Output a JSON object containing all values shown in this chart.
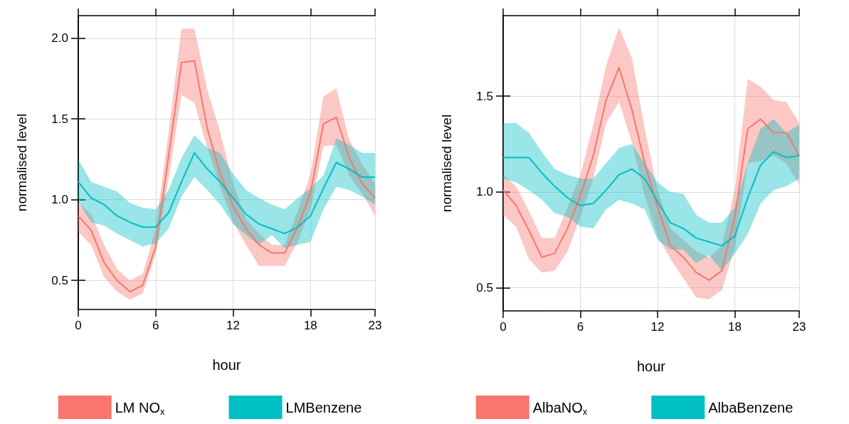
{
  "chart_data": [
    {
      "type": "line",
      "xlabel": "hour",
      "ylabel": "normalised level",
      "x": [
        0,
        1,
        2,
        3,
        4,
        5,
        6,
        7,
        8,
        9,
        10,
        11,
        12,
        13,
        14,
        15,
        16,
        17,
        18,
        19,
        20,
        21,
        22,
        23
      ],
      "xlim": [
        0,
        23
      ],
      "xticks": [
        0,
        6,
        12,
        18,
        23
      ],
      "ylim": [
        0.32,
        2.14
      ],
      "yticks": [
        {
          "value": 0.5,
          "label": "0.5"
        },
        {
          "value": 1.0,
          "label": "1.0"
        },
        {
          "value": 1.5,
          "label": "1.5"
        },
        {
          "value": 2.0,
          "label": "2.0"
        }
      ],
      "grid": true,
      "legend": "bottom",
      "marker": "none",
      "line_style": "solid",
      "series": [
        {
          "name": "LM NO$_{x}$",
          "color": "#f8766d",
          "values": [
            0.9,
            0.81,
            0.61,
            0.5,
            0.43,
            0.47,
            0.71,
            1.27,
            1.85,
            1.86,
            1.44,
            1.16,
            0.96,
            0.82,
            0.72,
            0.67,
            0.67,
            0.83,
            1.04,
            1.47,
            1.51,
            1.26,
            1.1,
            1.01
          ],
          "lower": [
            0.8,
            0.72,
            0.52,
            0.43,
            0.38,
            0.42,
            0.66,
            1.13,
            1.65,
            1.6,
            1.32,
            1.08,
            0.86,
            0.72,
            0.59,
            0.59,
            0.59,
            0.74,
            0.94,
            1.33,
            1.34,
            1.15,
            1.04,
            0.9
          ],
          "upper": [
            0.98,
            0.91,
            0.72,
            0.57,
            0.5,
            0.54,
            0.82,
            1.42,
            2.06,
            2.06,
            1.68,
            1.42,
            1.1,
            0.88,
            0.79,
            0.72,
            0.72,
            0.93,
            1.16,
            1.64,
            1.69,
            1.37,
            1.22,
            1.1
          ]
        },
        {
          "name": "LMBenzene",
          "color": "#00bfc4",
          "values": [
            1.11,
            1.01,
            0.97,
            0.9,
            0.86,
            0.83,
            0.83,
            0.92,
            1.11,
            1.29,
            1.19,
            1.11,
            1.01,
            0.91,
            0.85,
            0.82,
            0.79,
            0.83,
            0.9,
            1.07,
            1.23,
            1.19,
            1.14,
            1.14
          ],
          "lower": [
            0.99,
            0.86,
            0.84,
            0.79,
            0.75,
            0.71,
            0.73,
            0.82,
            1.02,
            1.14,
            1.06,
            0.97,
            0.85,
            0.78,
            0.72,
            0.78,
            0.7,
            0.72,
            0.74,
            0.94,
            1.08,
            1.06,
            1.02,
            0.97
          ],
          "upper": [
            1.25,
            1.11,
            1.08,
            1.05,
            0.98,
            0.95,
            0.94,
            1.06,
            1.26,
            1.4,
            1.32,
            1.29,
            1.16,
            1.06,
            1.01,
            0.97,
            0.94,
            1.01,
            1.07,
            1.15,
            1.38,
            1.34,
            1.29,
            1.29
          ]
        }
      ]
    },
    {
      "type": "line",
      "xlabel": "hour",
      "ylabel": "normalised level",
      "x": [
        0,
        1,
        2,
        3,
        4,
        5,
        6,
        7,
        8,
        9,
        10,
        11,
        12,
        13,
        14,
        15,
        16,
        17,
        18,
        19,
        20,
        21,
        22,
        23
      ],
      "xlim": [
        0,
        23
      ],
      "xticks": [
        0,
        6,
        12,
        18,
        23
      ],
      "ylim": [
        0.38,
        1.92
      ],
      "yticks": [
        {
          "value": 0.5,
          "label": "0.5"
        },
        {
          "value": 1.0,
          "label": "1.0"
        },
        {
          "value": 1.5,
          "label": "1.5"
        }
      ],
      "grid": true,
      "legend": "bottom",
      "marker": "none",
      "line_style": "solid",
      "series": [
        {
          "name": "AlbaNO$_{x}$",
          "color": "#f8766d",
          "values": [
            1.01,
            0.93,
            0.8,
            0.66,
            0.68,
            0.81,
            0.98,
            1.19,
            1.48,
            1.65,
            1.43,
            1.15,
            0.92,
            0.72,
            0.66,
            0.58,
            0.54,
            0.59,
            0.87,
            1.33,
            1.38,
            1.31,
            1.31,
            1.19
          ],
          "lower": [
            0.88,
            0.82,
            0.65,
            0.58,
            0.59,
            0.69,
            0.87,
            1.07,
            1.36,
            1.47,
            1.26,
            0.98,
            0.77,
            0.65,
            0.55,
            0.45,
            0.44,
            0.49,
            0.71,
            1.15,
            1.16,
            1.19,
            1.15,
            1.04
          ],
          "upper": [
            1.09,
            1.03,
            0.9,
            0.76,
            0.76,
            0.92,
            1.09,
            1.35,
            1.66,
            1.86,
            1.7,
            1.33,
            1.01,
            0.81,
            0.75,
            0.69,
            0.66,
            0.72,
            1.01,
            1.59,
            1.55,
            1.48,
            1.47,
            1.36
          ]
        },
        {
          "name": "AlbaBenzene",
          "color": "#00bfc4",
          "values": [
            1.18,
            1.18,
            1.18,
            1.1,
            1.03,
            0.97,
            0.93,
            0.94,
            1.01,
            1.09,
            1.12,
            1.07,
            0.95,
            0.84,
            0.81,
            0.76,
            0.74,
            0.72,
            0.77,
            0.97,
            1.14,
            1.21,
            1.18,
            1.19
          ],
          "lower": [
            1.07,
            1.05,
            1.01,
            0.96,
            0.89,
            0.87,
            0.82,
            0.81,
            0.91,
            0.96,
            0.94,
            0.91,
            0.75,
            0.7,
            0.7,
            0.63,
            0.67,
            0.59,
            0.68,
            0.78,
            0.94,
            1.01,
            1.03,
            1.07
          ],
          "upper": [
            1.36,
            1.36,
            1.31,
            1.21,
            1.12,
            1.09,
            1.07,
            1.07,
            1.15,
            1.23,
            1.25,
            1.15,
            1.05,
            1.0,
            0.99,
            0.88,
            0.84,
            0.84,
            0.92,
            1.15,
            1.33,
            1.38,
            1.31,
            1.35
          ]
        }
      ]
    }
  ]
}
